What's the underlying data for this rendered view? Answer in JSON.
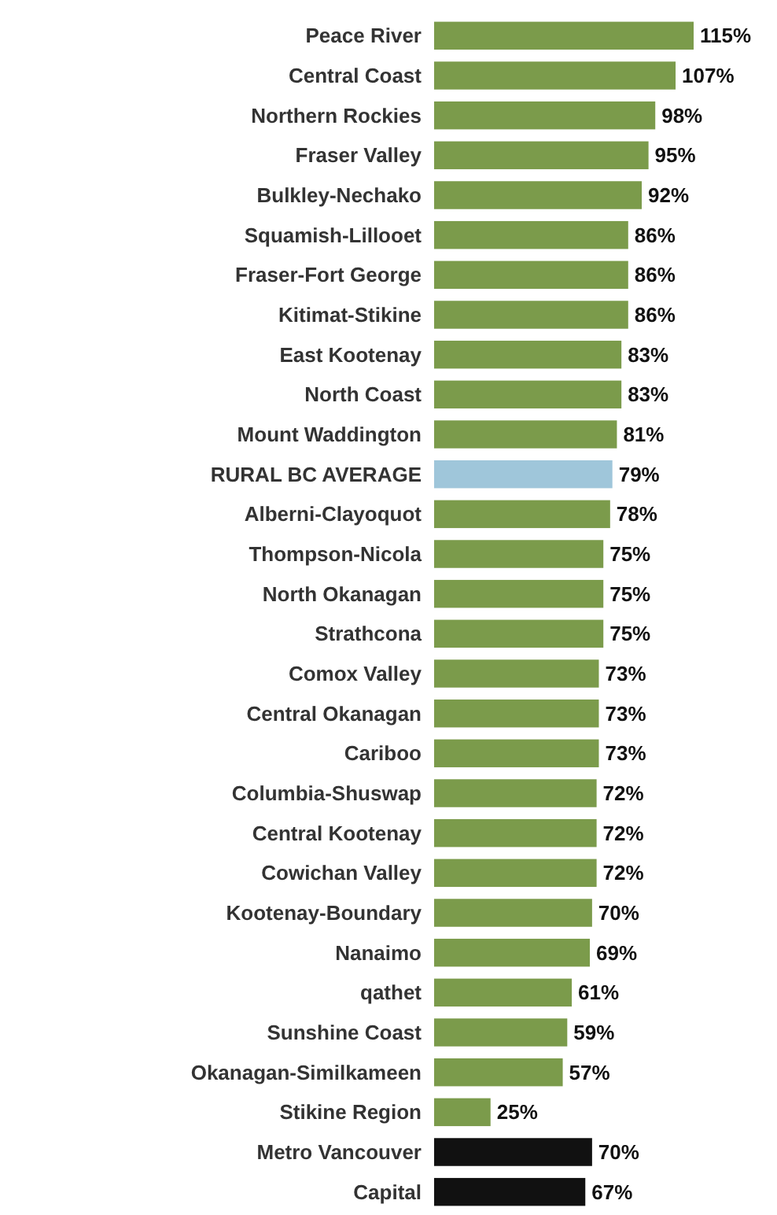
{
  "chart_data": {
    "type": "bar",
    "orientation": "horizontal",
    "data_labels": true,
    "categories": [
      "Peace River",
      "Central Coast",
      "Northern Rockies",
      "Fraser Valley",
      "Bulkley-Nechako",
      "Squamish-Lillooet",
      "Fraser-Fort George",
      "Kitimat-Stikine",
      "East Kootenay",
      "North Coast",
      "Mount Waddington",
      "RURAL BC AVERAGE",
      "Alberni-Clayoquot",
      "Thompson-Nicola",
      "North Okanagan",
      "Strathcona",
      "Comox Valley",
      "Central Okanagan",
      "Cariboo",
      "Columbia-Shuswap",
      "Central Kootenay",
      "Cowichan Valley",
      "Kootenay-Boundary",
      "Nanaimo",
      "qathet",
      "Sunshine Coast",
      "Okanagan-Similkameen",
      "Stikine Region",
      "Metro Vancouver",
      "Capital"
    ],
    "values": [
      115,
      107,
      98,
      95,
      92,
      86,
      86,
      86,
      83,
      83,
      81,
      79,
      78,
      75,
      75,
      75,
      73,
      73,
      73,
      72,
      72,
      72,
      70,
      69,
      61,
      59,
      57,
      25,
      70,
      67
    ],
    "value_labels": [
      "115%",
      "107%",
      "98%",
      "95%",
      "92%",
      "86%",
      "86%",
      "86%",
      "83%",
      "83%",
      "81%",
      "79%",
      "78%",
      "75%",
      "75%",
      "75%",
      "73%",
      "73%",
      "73%",
      "72%",
      "72%",
      "72%",
      "70%",
      "69%",
      "61%",
      "59%",
      "57%",
      "25%",
      "70%",
      "67%"
    ],
    "colors": [
      "#7b9b4b",
      "#7b9b4b",
      "#7b9b4b",
      "#7b9b4b",
      "#7b9b4b",
      "#7b9b4b",
      "#7b9b4b",
      "#7b9b4b",
      "#7b9b4b",
      "#7b9b4b",
      "#7b9b4b",
      "#9fc6da",
      "#7b9b4b",
      "#7b9b4b",
      "#7b9b4b",
      "#7b9b4b",
      "#7b9b4b",
      "#7b9b4b",
      "#7b9b4b",
      "#7b9b4b",
      "#7b9b4b",
      "#7b9b4b",
      "#7b9b4b",
      "#7b9b4b",
      "#7b9b4b",
      "#7b9b4b",
      "#7b9b4b",
      "#7b9b4b",
      "#111111",
      "#111111"
    ]
  }
}
